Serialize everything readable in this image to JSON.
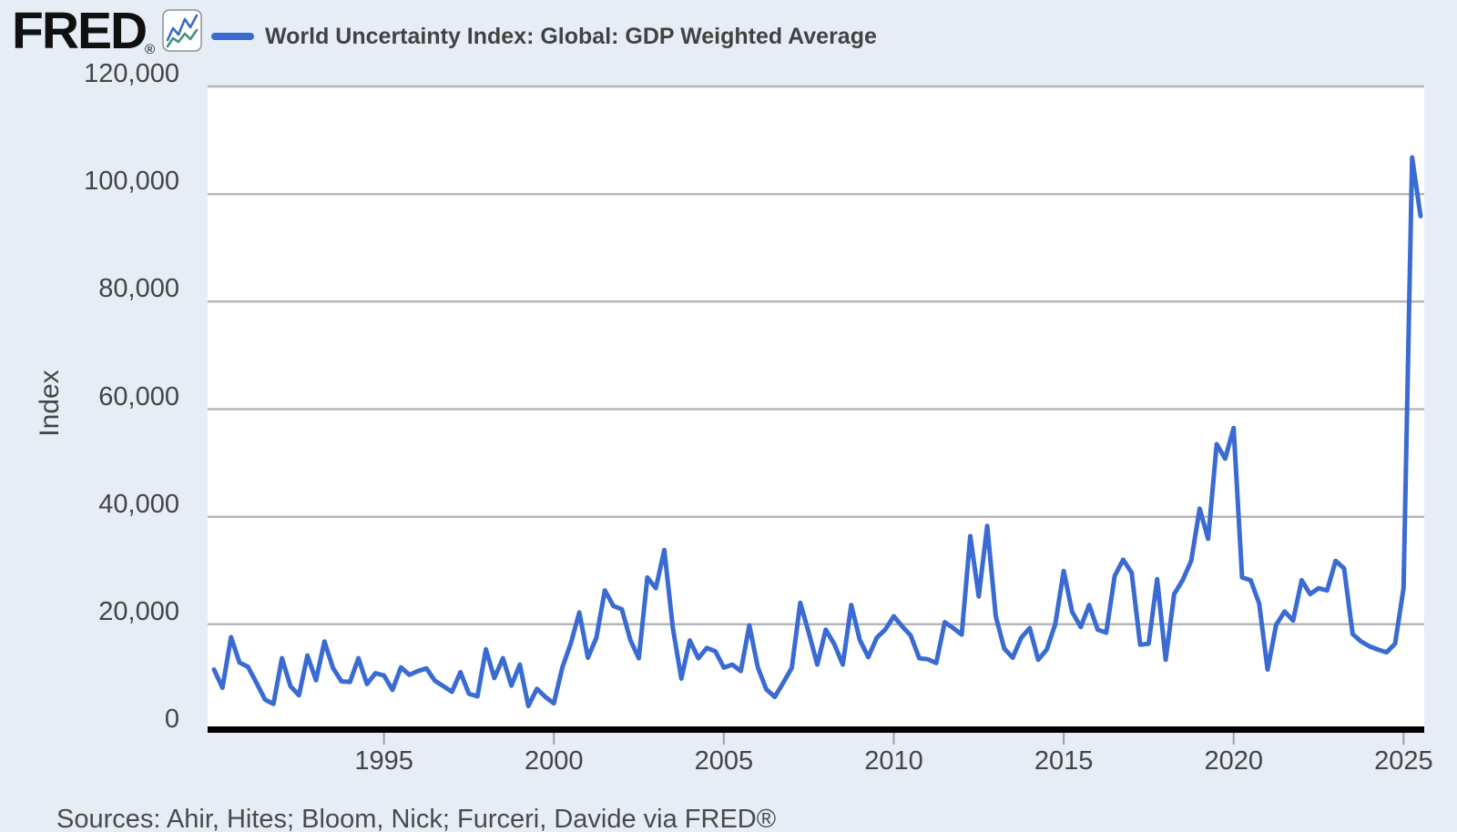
{
  "header": {
    "logo_text": "FRED",
    "logo_registered": "®",
    "legend_label": "World Uncertainty Index: Global: GDP Weighted Average"
  },
  "footer": {
    "sources": "Sources: Ahir, Hites; Bloom, Nick; Furceri, Davide via FRED®"
  },
  "colors": {
    "series_line": "#3a6bd2",
    "background": "#e7edf5",
    "plot_background": "#ffffff",
    "gridline": "#b4b7ba",
    "axis_line": "#000000",
    "tick_mark": "#9aa0a6",
    "label_text": "#444444",
    "badge_line_blue": "#3a6bc9",
    "badge_line_teal": "#43907e"
  },
  "chart_data": {
    "type": "line",
    "title": "World Uncertainty Index: Global: GDP Weighted Average",
    "ylabel": "Index",
    "xlabel": "",
    "ylim": [
      0,
      120000
    ],
    "grid": true,
    "legend_position": "top",
    "frequency": "quarterly",
    "x_start_year": 1990,
    "x_start_label": "1990 Q1",
    "x_end_label": "2025 Q3",
    "yticks": [
      {
        "value": 0,
        "label": "0"
      },
      {
        "value": 20000,
        "label": "20,000"
      },
      {
        "value": 40000,
        "label": "40,000"
      },
      {
        "value": 60000,
        "label": "60,000"
      },
      {
        "value": 80000,
        "label": "80,000"
      },
      {
        "value": 100000,
        "label": "100,000"
      },
      {
        "value": 120000,
        "label": "120,000"
      }
    ],
    "xticks": [
      {
        "year": 1995,
        "label": "1995"
      },
      {
        "year": 2000,
        "label": "2000"
      },
      {
        "year": 2005,
        "label": "2005"
      },
      {
        "year": 2010,
        "label": "2010"
      },
      {
        "year": 2015,
        "label": "2015"
      },
      {
        "year": 2020,
        "label": "2020"
      },
      {
        "year": 2025,
        "label": "2025"
      }
    ],
    "series": [
      {
        "name": "World Uncertainty Index: Global: GDP Weighted Average",
        "color": "#3a6bd2",
        "values": [
          11600,
          8200,
          17600,
          12900,
          12100,
          9100,
          6000,
          5200,
          13700,
          8500,
          6800,
          14200,
          9600,
          16800,
          11900,
          9400,
          9300,
          13700,
          8900,
          10900,
          10500,
          7800,
          12000,
          10600,
          11300,
          11800,
          9500,
          8500,
          7450,
          11100,
          7100,
          6600,
          15350,
          10000,
          13700,
          8600,
          12500,
          4800,
          8000,
          6500,
          5300,
          12000,
          16500,
          22200,
          13800,
          17500,
          26300,
          23400,
          22800,
          17100,
          13700,
          28700,
          26700,
          33800,
          19300,
          9900,
          17000,
          13700,
          15600,
          15000,
          11950,
          12500,
          11300,
          19800,
          12000,
          7900,
          6500,
          9150,
          11900,
          24000,
          18400,
          12500,
          19000,
          16300,
          12500,
          23600,
          17100,
          13900,
          17500,
          19000,
          21500,
          19600,
          17900,
          13700,
          13500,
          12800,
          20400,
          19300,
          18100,
          36400,
          25200,
          38300,
          21500,
          15500,
          13800,
          17500,
          19300,
          13400,
          15300,
          20000,
          29900,
          22300,
          19500,
          23600,
          19000,
          18450,
          29000,
          32000,
          29600,
          16200,
          16400,
          28400,
          13400,
          25600,
          28200,
          31800,
          41500,
          35900,
          53500,
          50800,
          56500,
          28700,
          28200,
          23900,
          11600,
          19900,
          22400,
          20700,
          28200,
          25600,
          26700,
          26300,
          31800,
          30400,
          18200,
          16800,
          15900,
          15300,
          14800,
          16400,
          26700,
          106800,
          95900
        ]
      }
    ]
  }
}
